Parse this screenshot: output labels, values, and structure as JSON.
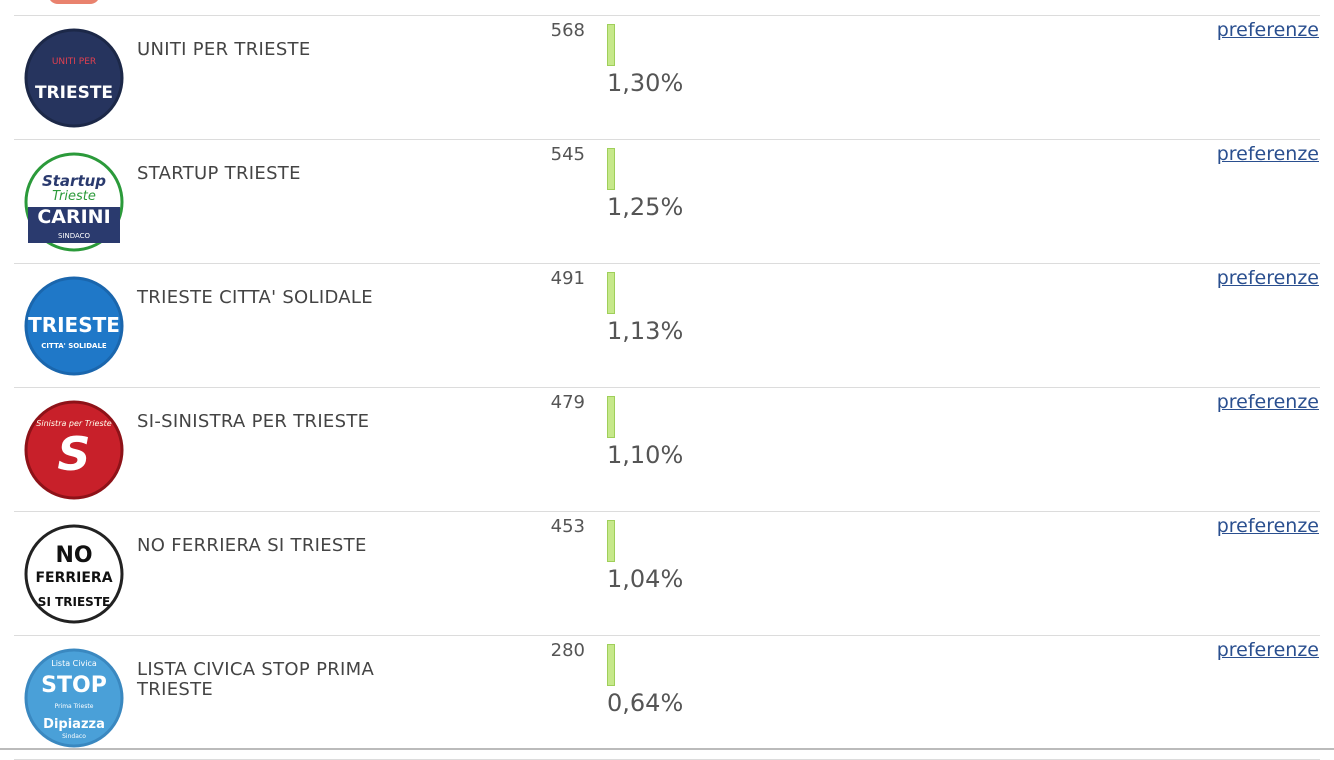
{
  "table": {
    "rows": [
      {
        "logo": [
          "UNITI PER",
          "TRIESTE"
        ],
        "name": "UNITI PER TRIESTE",
        "votes": "568",
        "percent": "1,30%",
        "link": "preferenze"
      },
      {
        "logo": [
          "Startup",
          "Trieste",
          "CARINI",
          "SINDACO"
        ],
        "name": "STARTUP TRIESTE",
        "votes": "545",
        "percent": "1,25%",
        "link": "preferenze"
      },
      {
        "logo": [
          "TRIESTE",
          "CITTA' SOLIDALE"
        ],
        "name": "TRIESTE CITTA' SOLIDALE",
        "votes": "491",
        "percent": "1,13%",
        "link": "preferenze"
      },
      {
        "logo": [
          "Sinistra per Trieste",
          "S"
        ],
        "name": "SI-SINISTRA PER TRIESTE",
        "votes": "479",
        "percent": "1,10%",
        "link": "preferenze"
      },
      {
        "logo": [
          "NO",
          "FERRIERA",
          "SI TRIESTE"
        ],
        "name": "NO FERRIERA SI TRIESTE",
        "votes": "453",
        "percent": "1,04%",
        "link": "preferenze"
      },
      {
        "logo": [
          "Lista Civica",
          "STOP",
          "Prima Trieste",
          "Dipiazza",
          "Sindaco"
        ],
        "name": "LISTA CIVICA STOP PRIMA TRIESTE",
        "votes": "280",
        "percent": "0,64%",
        "link": "preferenze"
      }
    ]
  }
}
